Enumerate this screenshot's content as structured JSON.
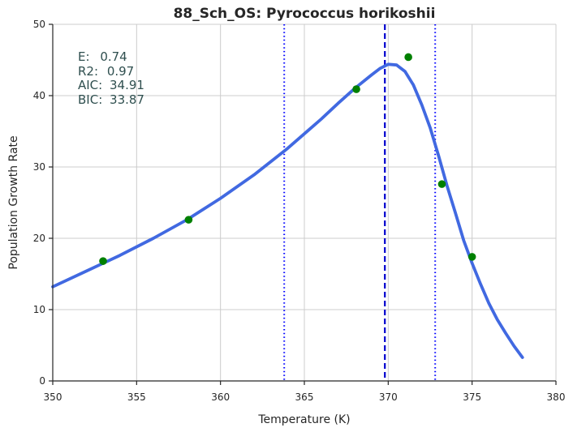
{
  "chart_data": {
    "type": "scatter",
    "title": "88_Sch_OS: Pyrococcus horikoshii",
    "xlabel": "Temperature (K)",
    "ylabel": "Population Growth Rate",
    "xlim": [
      350,
      380
    ],
    "ylim": [
      0,
      50
    ],
    "xticks": [
      350,
      355,
      360,
      365,
      370,
      375,
      380
    ],
    "yticks": [
      0,
      10,
      20,
      30,
      40,
      50
    ],
    "grid": true,
    "colors": {
      "points": "#008000",
      "fit": "#4169e1",
      "peak_line": "#0000cd",
      "bound_lines": "#0000ff",
      "stats": "#2f4f4f"
    },
    "points": [
      {
        "x": 353.0,
        "y": 16.8
      },
      {
        "x": 358.1,
        "y": 22.6
      },
      {
        "x": 368.1,
        "y": 40.9
      },
      {
        "x": 371.2,
        "y": 45.4
      },
      {
        "x": 373.2,
        "y": 27.6
      },
      {
        "x": 375.0,
        "y": 17.4
      }
    ],
    "fit_curve": [
      {
        "x": 350.0,
        "y": 13.2
      },
      {
        "x": 352.0,
        "y": 15.4
      },
      {
        "x": 354.0,
        "y": 17.6
      },
      {
        "x": 356.0,
        "y": 20.0
      },
      {
        "x": 358.0,
        "y": 22.6
      },
      {
        "x": 360.0,
        "y": 25.6
      },
      {
        "x": 362.0,
        "y": 28.9
      },
      {
        "x": 364.0,
        "y": 32.6
      },
      {
        "x": 366.0,
        "y": 36.7
      },
      {
        "x": 367.0,
        "y": 38.9
      },
      {
        "x": 368.0,
        "y": 41.0
      },
      {
        "x": 369.0,
        "y": 42.9
      },
      {
        "x": 369.5,
        "y": 43.8
      },
      {
        "x": 370.0,
        "y": 44.4
      },
      {
        "x": 370.5,
        "y": 44.3
      },
      {
        "x": 371.0,
        "y": 43.4
      },
      {
        "x": 371.5,
        "y": 41.5
      },
      {
        "x": 372.0,
        "y": 38.7
      },
      {
        "x": 372.5,
        "y": 35.5
      },
      {
        "x": 373.0,
        "y": 31.6
      },
      {
        "x": 373.5,
        "y": 27.4
      },
      {
        "x": 374.0,
        "y": 23.6
      },
      {
        "x": 374.5,
        "y": 19.7
      },
      {
        "x": 375.0,
        "y": 16.5
      },
      {
        "x": 375.5,
        "y": 13.6
      },
      {
        "x": 376.0,
        "y": 10.9
      },
      {
        "x": 376.5,
        "y": 8.6
      },
      {
        "x": 377.0,
        "y": 6.7
      },
      {
        "x": 377.5,
        "y": 4.9
      },
      {
        "x": 378.0,
        "y": 3.3
      }
    ],
    "peak_line_x": 369.8,
    "bound_lines_x": [
      363.8,
      372.8
    ],
    "stats": [
      {
        "label": "E:",
        "value": "0.74"
      },
      {
        "label": "R2:",
        "value": "0.97"
      },
      {
        "label": "AIC:",
        "value": "34.91"
      },
      {
        "label": "BIC:",
        "value": "33.87"
      }
    ]
  }
}
